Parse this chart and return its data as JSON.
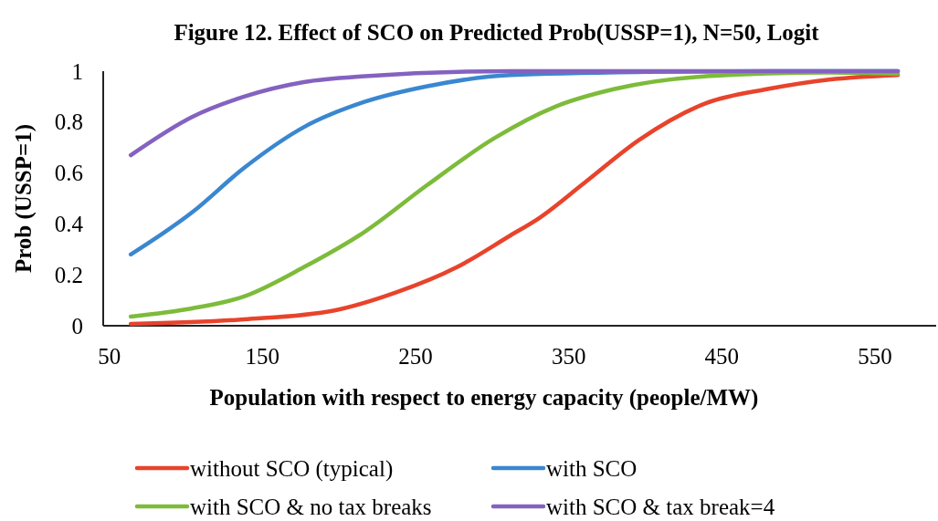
{
  "chart_data": {
    "type": "line",
    "title": "Figure 12. Effect of SCO on Predicted Prob(USSP=1), N=50, Logit",
    "xlabel": "Population with respect to energy capacity (people/MW)",
    "ylabel": "Prob (USSP=1)",
    "xlim": [
      46,
      590
    ],
    "xticks": [
      50,
      150,
      250,
      350,
      450,
      550
    ],
    "ylim": [
      0,
      1
    ],
    "yticks": [
      0,
      0.2,
      0.4,
      0.6,
      0.8,
      1
    ],
    "grid": false,
    "legend": "bottom",
    "marker": "none",
    "line_style": "solid",
    "series": [
      {
        "name": "without SCO (typical)",
        "color": "#e8432c",
        "x": [
          64,
          138,
          197,
          237,
          277,
          312,
          330,
          360,
          396,
          440,
          480,
          520,
          565
        ],
        "values": [
          0.007,
          0.025,
          0.06,
          0.13,
          0.23,
          0.355,
          0.42,
          0.56,
          0.73,
          0.875,
          0.93,
          0.967,
          0.985
        ]
      },
      {
        "name": "with SCO",
        "color": "#3a87d0",
        "x": [
          64,
          104,
          138,
          177,
          217,
          257,
          312,
          400,
          480,
          565
        ],
        "values": [
          0.28,
          0.445,
          0.62,
          0.78,
          0.88,
          0.94,
          0.985,
          0.997,
          1,
          1
        ]
      },
      {
        "name": "with SCO & no tax breaks",
        "color": "#7dbb3a",
        "x": [
          64,
          104,
          138,
          177,
          217,
          257,
          301,
          341,
          380,
          440,
          520,
          565
        ],
        "values": [
          0.036,
          0.068,
          0.115,
          0.23,
          0.37,
          0.55,
          0.735,
          0.86,
          0.93,
          0.98,
          0.995,
          0.99
        ]
      },
      {
        "name": "with SCO & tax break=4",
        "color": "#8462c0",
        "x": [
          64,
          104,
          138,
          177,
          217,
          312,
          400,
          565
        ],
        "values": [
          0.67,
          0.82,
          0.9,
          0.957,
          0.98,
          1,
          1,
          1
        ]
      }
    ]
  }
}
